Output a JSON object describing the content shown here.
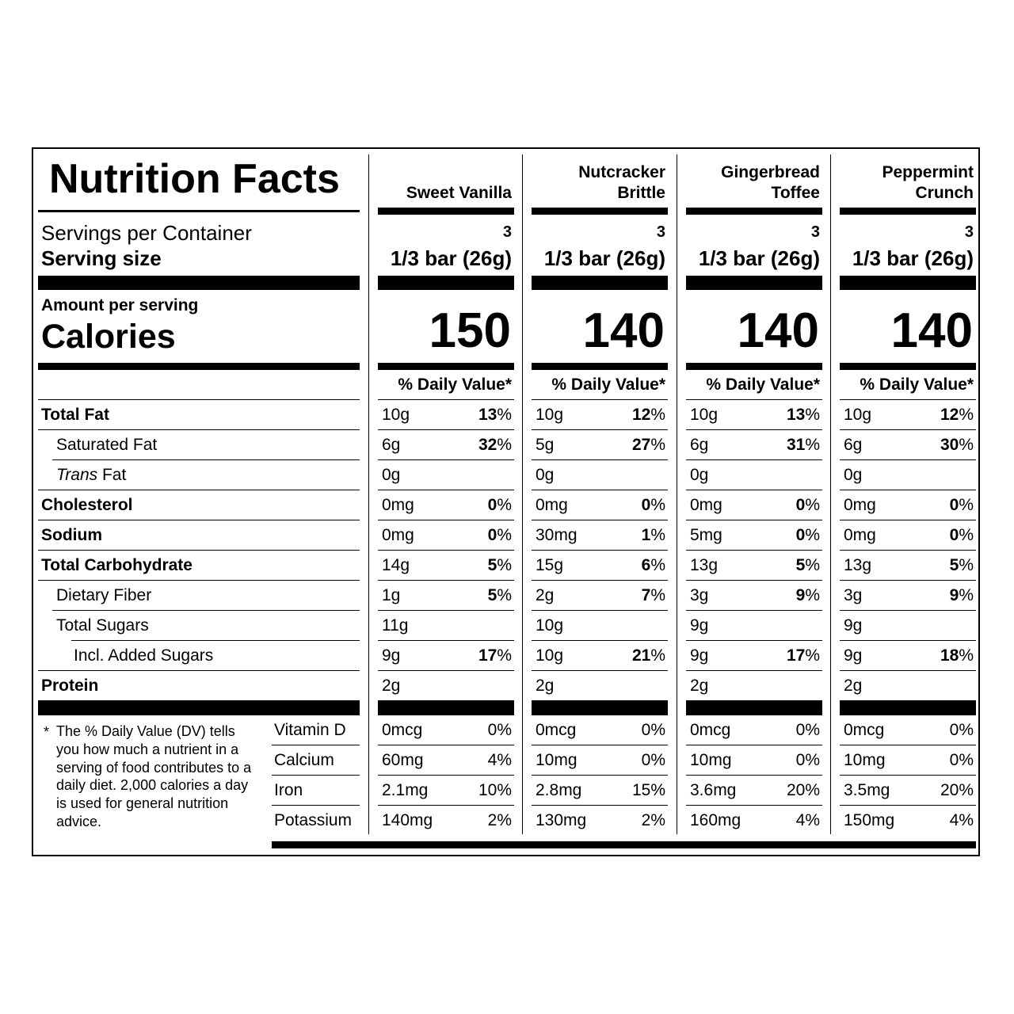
{
  "title": "Nutrition Facts",
  "labels": {
    "servings_per_container": "Servings per Container",
    "serving_size": "Serving size",
    "amount_per_serving": "Amount per serving",
    "calories": "Calories",
    "daily_value_header": "% Daily Value*"
  },
  "nutrients": [
    {
      "name": "Total Fat",
      "bold": true,
      "indent": 0
    },
    {
      "name": "Saturated Fat",
      "bold": false,
      "indent": 1
    },
    {
      "name_italic": "Trans",
      "name": " Fat",
      "bold": false,
      "indent": 1
    },
    {
      "name": "Cholesterol",
      "bold": true,
      "indent": 0
    },
    {
      "name": "Sodium",
      "bold": true,
      "indent": 0
    },
    {
      "name": "Total Carbohydrate",
      "bold": true,
      "indent": 0
    },
    {
      "name": "Dietary Fiber",
      "bold": false,
      "indent": 1
    },
    {
      "name": "Total Sugars",
      "bold": false,
      "indent": 1
    },
    {
      "name": "Incl. Added Sugars",
      "bold": false,
      "indent": 2
    },
    {
      "name": "Protein",
      "bold": true,
      "indent": 0
    }
  ],
  "minerals": [
    "Vitamin D",
    "Calcium",
    "Iron",
    "Potassium"
  ],
  "footnote": {
    "marker": "*",
    "text": "The % Daily Value (DV) tells you how much a nutrient in a serving of food contributes to a daily diet. 2,000 calories a day is used for general nutrition advice."
  },
  "products": [
    {
      "name_lines": [
        "",
        "Sweet Vanilla"
      ],
      "servings": "3",
      "serving_size": "1/3 bar (26g)",
      "calories": "150",
      "rows": [
        {
          "amount": "10g",
          "dv_num": "13",
          "dv_sym": "%"
        },
        {
          "amount": "6g",
          "dv_num": "32",
          "dv_sym": "%"
        },
        {
          "amount": "0g",
          "dv_num": "",
          "dv_sym": ""
        },
        {
          "amount": "0mg",
          "dv_num": "0",
          "dv_sym": "%"
        },
        {
          "amount": "0mg",
          "dv_num": "0",
          "dv_sym": "%"
        },
        {
          "amount": "14g",
          "dv_num": "5",
          "dv_sym": "%"
        },
        {
          "amount": "1g",
          "dv_num": "5",
          "dv_sym": "%"
        },
        {
          "amount": "11g",
          "dv_num": "",
          "dv_sym": ""
        },
        {
          "amount": "9g",
          "dv_num": "17",
          "dv_sym": "%"
        },
        {
          "amount": "2g",
          "dv_num": "",
          "dv_sym": ""
        }
      ],
      "minerals": [
        {
          "amount": "0mcg",
          "dv": "0%"
        },
        {
          "amount": "60mg",
          "dv": "4%"
        },
        {
          "amount": "2.1mg",
          "dv": "10%"
        },
        {
          "amount": "140mg",
          "dv": "2%"
        }
      ]
    },
    {
      "name_lines": [
        "Nutcracker",
        "Brittle"
      ],
      "servings": "3",
      "serving_size": "1/3 bar (26g)",
      "calories": "140",
      "rows": [
        {
          "amount": "10g",
          "dv_num": "12",
          "dv_sym": "%"
        },
        {
          "amount": "5g",
          "dv_num": "27",
          "dv_sym": "%"
        },
        {
          "amount": "0g",
          "dv_num": "",
          "dv_sym": ""
        },
        {
          "amount": "0mg",
          "dv_num": "0",
          "dv_sym": "%"
        },
        {
          "amount": "30mg",
          "dv_num": "1",
          "dv_sym": "%"
        },
        {
          "amount": "15g",
          "dv_num": "6",
          "dv_sym": "%"
        },
        {
          "amount": "2g",
          "dv_num": "7",
          "dv_sym": "%"
        },
        {
          "amount": "10g",
          "dv_num": "",
          "dv_sym": ""
        },
        {
          "amount": "10g",
          "dv_num": "21",
          "dv_sym": "%"
        },
        {
          "amount": "2g",
          "dv_num": "",
          "dv_sym": ""
        }
      ],
      "minerals": [
        {
          "amount": "0mcg",
          "dv": "0%"
        },
        {
          "amount": "10mg",
          "dv": "0%"
        },
        {
          "amount": "2.8mg",
          "dv": "15%"
        },
        {
          "amount": "130mg",
          "dv": "2%"
        }
      ]
    },
    {
      "name_lines": [
        "Gingerbread",
        "Toffee"
      ],
      "servings": "3",
      "serving_size": "1/3 bar (26g)",
      "calories": "140",
      "rows": [
        {
          "amount": "10g",
          "dv_num": "13",
          "dv_sym": "%"
        },
        {
          "amount": "6g",
          "dv_num": "31",
          "dv_sym": "%"
        },
        {
          "amount": "0g",
          "dv_num": "",
          "dv_sym": ""
        },
        {
          "amount": "0mg",
          "dv_num": "0",
          "dv_sym": "%"
        },
        {
          "amount": "5mg",
          "dv_num": "0",
          "dv_sym": "%"
        },
        {
          "amount": "13g",
          "dv_num": "5",
          "dv_sym": "%"
        },
        {
          "amount": "3g",
          "dv_num": "9",
          "dv_sym": "%"
        },
        {
          "amount": "9g",
          "dv_num": "",
          "dv_sym": ""
        },
        {
          "amount": "9g",
          "dv_num": "17",
          "dv_sym": "%"
        },
        {
          "amount": "2g",
          "dv_num": "",
          "dv_sym": ""
        }
      ],
      "minerals": [
        {
          "amount": "0mcg",
          "dv": "0%"
        },
        {
          "amount": "10mg",
          "dv": "0%"
        },
        {
          "amount": "3.6mg",
          "dv": "20%"
        },
        {
          "amount": "160mg",
          "dv": "4%"
        }
      ]
    },
    {
      "name_lines": [
        "Peppermint",
        "Crunch"
      ],
      "servings": "3",
      "serving_size": "1/3 bar (26g)",
      "calories": "140",
      "rows": [
        {
          "amount": "10g",
          "dv_num": "12",
          "dv_sym": "%"
        },
        {
          "amount": "6g",
          "dv_num": "30",
          "dv_sym": "%"
        },
        {
          "amount": "0g",
          "dv_num": "",
          "dv_sym": ""
        },
        {
          "amount": "0mg",
          "dv_num": "0",
          "dv_sym": "%"
        },
        {
          "amount": "0mg",
          "dv_num": "0",
          "dv_sym": "%"
        },
        {
          "amount": "13g",
          "dv_num": "5",
          "dv_sym": "%"
        },
        {
          "amount": "3g",
          "dv_num": "9",
          "dv_sym": "%"
        },
        {
          "amount": "9g",
          "dv_num": "",
          "dv_sym": ""
        },
        {
          "amount": "9g",
          "dv_num": "18",
          "dv_sym": "%"
        },
        {
          "amount": "2g",
          "dv_num": "",
          "dv_sym": ""
        }
      ],
      "minerals": [
        {
          "amount": "0mcg",
          "dv": "0%"
        },
        {
          "amount": "10mg",
          "dv": "0%"
        },
        {
          "amount": "3.5mg",
          "dv": "20%"
        },
        {
          "amount": "150mg",
          "dv": "4%"
        }
      ]
    }
  ]
}
